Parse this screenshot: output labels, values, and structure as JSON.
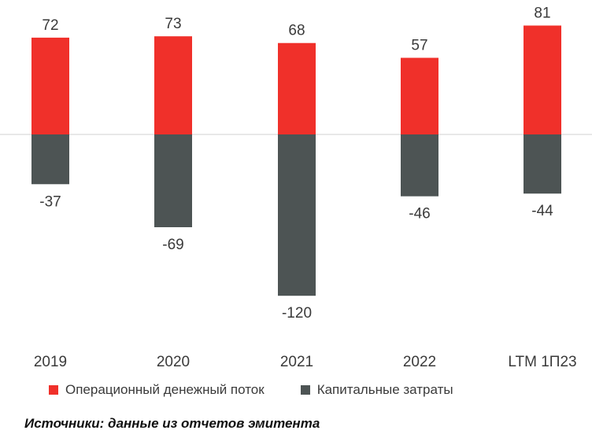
{
  "chart_data": {
    "type": "bar",
    "categories": [
      "2019",
      "2020",
      "2021",
      "2022",
      "LTM 1П23"
    ],
    "series": [
      {
        "name": "Операционный денежный поток",
        "values": [
          72,
          73,
          68,
          57,
          81
        ],
        "labels": [
          "72",
          "73",
          "68",
          "57",
          "81"
        ]
      },
      {
        "name": "Капитальные затраты",
        "values": [
          -37,
          -69,
          -120,
          -46,
          -44
        ],
        "labels": [
          "-37",
          "-69",
          "-120",
          "-46",
          "-44"
        ]
      }
    ],
    "title": "",
    "xlabel": "",
    "ylabel": "",
    "grid": false,
    "legend_position": "bottom-left"
  },
  "colors": {
    "operating_cf": "#f0302a",
    "capex": "#4d5454",
    "zero_line": "#d0d0d0"
  },
  "source_note": "Источники: данные из отчетов эмитента"
}
